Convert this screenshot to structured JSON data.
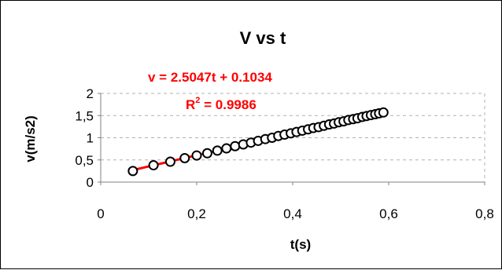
{
  "chart_data": {
    "type": "scatter",
    "title": "V vs t",
    "xlabel": "t(s)",
    "ylabel": "v(m/s2)",
    "xlim": [
      0,
      0.8
    ],
    "ylim": [
      0,
      2
    ],
    "x_ticks": [
      0,
      0.2,
      0.4,
      0.6,
      0.8
    ],
    "x_tick_labels": [
      "0",
      "0,2",
      "0,4",
      "0,6",
      "0,8"
    ],
    "y_ticks": [
      0,
      0.5,
      1,
      1.5,
      2
    ],
    "y_tick_labels": [
      "0",
      "0,5",
      "1",
      "1,5",
      "2"
    ],
    "grid": "dashed horizontal at y ticks, dashed vertical at right edge",
    "legend": "none",
    "series": [
      {
        "values": [
          [
            0.067,
            0.25
          ],
          [
            0.11,
            0.38
          ],
          [
            0.145,
            0.46
          ],
          [
            0.175,
            0.54
          ],
          [
            0.2,
            0.6
          ],
          [
            0.222,
            0.65
          ],
          [
            0.243,
            0.71
          ],
          [
            0.262,
            0.76
          ],
          [
            0.28,
            0.81
          ],
          [
            0.297,
            0.85
          ],
          [
            0.313,
            0.89
          ],
          [
            0.328,
            0.93
          ],
          [
            0.343,
            0.97
          ],
          [
            0.357,
            1.0
          ],
          [
            0.37,
            1.04
          ],
          [
            0.383,
            1.07
          ],
          [
            0.396,
            1.1
          ],
          [
            0.408,
            1.13
          ],
          [
            0.42,
            1.16
          ],
          [
            0.432,
            1.19
          ],
          [
            0.443,
            1.22
          ],
          [
            0.454,
            1.24
          ],
          [
            0.465,
            1.27
          ],
          [
            0.476,
            1.3
          ],
          [
            0.486,
            1.32
          ],
          [
            0.496,
            1.35
          ],
          [
            0.506,
            1.37
          ],
          [
            0.516,
            1.4
          ],
          [
            0.526,
            1.42
          ],
          [
            0.535,
            1.44
          ],
          [
            0.545,
            1.47
          ],
          [
            0.554,
            1.49
          ],
          [
            0.563,
            1.51
          ],
          [
            0.572,
            1.53
          ],
          [
            0.58,
            1.55
          ],
          [
            0.589,
            1.57
          ]
        ]
      }
    ],
    "trendline": {
      "type": "linear",
      "slope": 2.5047,
      "intercept": 0.1034,
      "x_range": [
        0.067,
        0.589
      ],
      "equation_label": "v = 2.5047t + 0.1034",
      "r2_prefix": "R",
      "r2_sup": "2",
      "r2_suffix": " = 0.9986"
    },
    "colors": {
      "marker_stroke": "#000000",
      "marker_fill": "#ffffff",
      "trendline": "#ff0000",
      "equation_text": "#ff0000",
      "grid": "#b0b0b0",
      "axis": "#808080",
      "frame": "#000000",
      "background": "#ffffff"
    }
  }
}
